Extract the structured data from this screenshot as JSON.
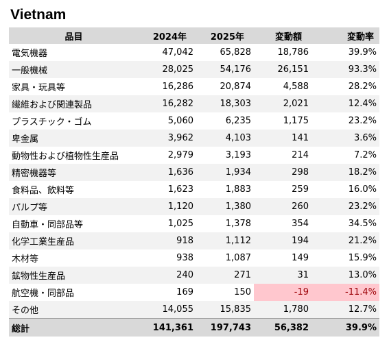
{
  "title": "Vietnam",
  "table": {
    "headers": {
      "item": "品目",
      "y2024": "2024年",
      "y2025": "2025年",
      "diff": "変動額",
      "rate": "変動率"
    },
    "rows": [
      {
        "item": "電気機器",
        "y2024": "47,042",
        "y2025": "65,828",
        "diff": "18,786",
        "rate": "39.9%"
      },
      {
        "item": "一般機械",
        "y2024": "28,025",
        "y2025": "54,176",
        "diff": "26,151",
        "rate": "93.3%"
      },
      {
        "item": "家具・玩具等",
        "y2024": "16,286",
        "y2025": "20,874",
        "diff": "4,588",
        "rate": "28.2%"
      },
      {
        "item": "繊維および関連製品",
        "y2024": "16,282",
        "y2025": "18,303",
        "diff": "2,021",
        "rate": "12.4%"
      },
      {
        "item": "プラスチック・ゴム",
        "y2024": "5,060",
        "y2025": "6,235",
        "diff": "1,175",
        "rate": "23.2%"
      },
      {
        "item": "卑金属",
        "y2024": "3,962",
        "y2025": "4,103",
        "diff": "141",
        "rate": "3.6%"
      },
      {
        "item": "動物性および植物性生産品",
        "y2024": "2,979",
        "y2025": "3,193",
        "diff": "214",
        "rate": "7.2%"
      },
      {
        "item": "精密機器等",
        "y2024": "1,636",
        "y2025": "1,934",
        "diff": "298",
        "rate": "18.2%"
      },
      {
        "item": "食料品、飲料等",
        "y2024": "1,623",
        "y2025": "1,883",
        "diff": "259",
        "rate": "16.0%"
      },
      {
        "item": "パルプ等",
        "y2024": "1,120",
        "y2025": "1,380",
        "diff": "260",
        "rate": "23.2%"
      },
      {
        "item": "自動車・同部品等",
        "y2024": "1,025",
        "y2025": "1,378",
        "diff": "354",
        "rate": "34.5%"
      },
      {
        "item": "化学工業生産品",
        "y2024": "918",
        "y2025": "1,112",
        "diff": "194",
        "rate": "21.2%"
      },
      {
        "item": "木材等",
        "y2024": "938",
        "y2025": "1,087",
        "diff": "149",
        "rate": "15.9%"
      },
      {
        "item": "鉱物性生産品",
        "y2024": "240",
        "y2025": "271",
        "diff": "31",
        "rate": "13.0%"
      },
      {
        "item": "航空機・同部品",
        "y2024": "169",
        "y2025": "150",
        "diff": "-19",
        "rate": "-11.4%"
      },
      {
        "item": "その他",
        "y2024": "14,055",
        "y2025": "15,835",
        "diff": "1,780",
        "rate": "12.7%"
      }
    ],
    "total": {
      "item": "総計",
      "y2024": "141,361",
      "y2025": "197,743",
      "diff": "56,382",
      "rate": "39.9%"
    }
  },
  "colors": {
    "header_bg": "#d9d9d9",
    "band_bg": "#f2f2f2",
    "negative_bg": "#ffc7ce",
    "negative_text": "#9c0006"
  }
}
